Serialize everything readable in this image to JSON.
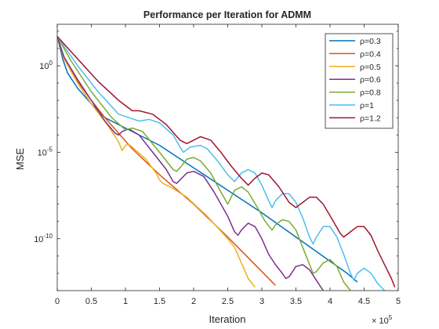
{
  "chart_data": {
    "type": "line",
    "title": "Performance per Iteration for ADMM",
    "xlabel": "Iteration",
    "ylabel": "MSE",
    "x_exponent_label": "× 10",
    "x_exponent": "5",
    "xlim": [
      0,
      5
    ],
    "ylim_log10": [
      -13,
      2.4
    ],
    "y_scale": "log",
    "x_ticks": [
      0,
      0.5,
      1,
      1.5,
      2,
      2.5,
      3,
      3.5,
      4,
      4.5,
      5
    ],
    "x_tick_labels": [
      "0",
      "0.5",
      "1",
      "1.5",
      "2",
      "2.5",
      "3",
      "3.5",
      "4",
      "4.5",
      "5"
    ],
    "y_ticks_log10": [
      0,
      -5,
      -10
    ],
    "y_tick_bases": [
      "10",
      "10",
      "10"
    ],
    "y_tick_exps": [
      "0",
      "-5",
      "-10"
    ],
    "grid": false,
    "legend_position": "top-right",
    "series": [
      {
        "name": "ρ=0.3",
        "color": "#0072bd",
        "points": [
          [
            0,
            1.7
          ],
          [
            0.08,
            0.4
          ],
          [
            0.15,
            -0.4
          ],
          [
            0.3,
            -1.3
          ],
          [
            0.5,
            -2.2
          ],
          [
            0.7,
            -3.0
          ],
          [
            1.0,
            -3.6
          ],
          [
            1.5,
            -4.6
          ],
          [
            2.0,
            -5.9
          ],
          [
            2.5,
            -7.2
          ],
          [
            3.0,
            -8.5
          ],
          [
            3.5,
            -9.9
          ],
          [
            4.0,
            -11.3
          ],
          [
            4.25,
            -12.0
          ],
          [
            4.4,
            -12.5
          ]
        ]
      },
      {
        "name": "ρ=0.4",
        "color": "#d95319",
        "points": [
          [
            0,
            1.7
          ],
          [
            0.1,
            0.5
          ],
          [
            0.3,
            -0.9
          ],
          [
            0.5,
            -2.0
          ],
          [
            0.7,
            -3.0
          ],
          [
            0.9,
            -3.9
          ],
          [
            1.1,
            -4.8
          ],
          [
            1.5,
            -6.3
          ],
          [
            2.0,
            -8.0
          ],
          [
            2.5,
            -9.9
          ],
          [
            2.7,
            -10.7
          ],
          [
            2.95,
            -11.7
          ],
          [
            3.2,
            -12.7
          ]
        ]
      },
      {
        "name": "ρ=0.5",
        "color": "#edb120",
        "points": [
          [
            0,
            1.7
          ],
          [
            0.1,
            0.4
          ],
          [
            0.3,
            -1.0
          ],
          [
            0.5,
            -2.2
          ],
          [
            0.75,
            -3.5
          ],
          [
            0.9,
            -4.4
          ],
          [
            0.95,
            -4.9
          ],
          [
            1.0,
            -4.6
          ],
          [
            1.05,
            -4.55
          ],
          [
            1.1,
            -4.7
          ],
          [
            1.3,
            -5.4
          ],
          [
            1.45,
            -6.2
          ],
          [
            1.5,
            -6.6
          ],
          [
            1.55,
            -6.8
          ],
          [
            1.7,
            -7.1
          ],
          [
            1.9,
            -7.6
          ],
          [
            2.2,
            -8.7
          ],
          [
            2.5,
            -10.0
          ],
          [
            2.6,
            -10.5
          ],
          [
            2.7,
            -11.4
          ],
          [
            2.8,
            -12.3
          ],
          [
            2.9,
            -12.8
          ]
        ]
      },
      {
        "name": "ρ=0.6",
        "color": "#7e2f8e",
        "points": [
          [
            0,
            1.7
          ],
          [
            0.1,
            0.5
          ],
          [
            0.3,
            -0.8
          ],
          [
            0.5,
            -2.0
          ],
          [
            0.7,
            -3.2
          ],
          [
            0.85,
            -3.9
          ],
          [
            0.9,
            -4.0
          ],
          [
            0.95,
            -3.8
          ],
          [
            1.05,
            -3.65
          ],
          [
            1.2,
            -4.0
          ],
          [
            1.4,
            -5.0
          ],
          [
            1.6,
            -6.0
          ],
          [
            1.7,
            -6.7
          ],
          [
            1.75,
            -6.8
          ],
          [
            1.8,
            -6.6
          ],
          [
            1.9,
            -6.2
          ],
          [
            2.0,
            -6.1
          ],
          [
            2.15,
            -6.4
          ],
          [
            2.3,
            -7.3
          ],
          [
            2.4,
            -8.0
          ],
          [
            2.5,
            -8.7
          ],
          [
            2.6,
            -9.6
          ],
          [
            2.65,
            -9.8
          ],
          [
            2.7,
            -9.5
          ],
          [
            2.8,
            -9.1
          ],
          [
            2.9,
            -9.3
          ],
          [
            3.0,
            -10.0
          ],
          [
            3.1,
            -10.9
          ],
          [
            3.2,
            -11.5
          ],
          [
            3.3,
            -12.0
          ],
          [
            3.35,
            -12.3
          ],
          [
            3.4,
            -12.2
          ],
          [
            3.5,
            -11.6
          ],
          [
            3.6,
            -11.5
          ],
          [
            3.7,
            -11.8
          ],
          [
            3.8,
            -12.4
          ],
          [
            3.9,
            -13.0
          ]
        ]
      },
      {
        "name": "ρ=0.8",
        "color": "#77ac30",
        "points": [
          [
            0,
            1.7
          ],
          [
            0.2,
            0.3
          ],
          [
            0.5,
            -1.5
          ],
          [
            0.8,
            -3.0
          ],
          [
            1.0,
            -3.7
          ],
          [
            1.1,
            -3.6
          ],
          [
            1.25,
            -3.8
          ],
          [
            1.5,
            -5.0
          ],
          [
            1.7,
            -6.0
          ],
          [
            1.75,
            -6.1
          ],
          [
            1.8,
            -5.9
          ],
          [
            1.9,
            -5.4
          ],
          [
            2.0,
            -5.3
          ],
          [
            2.1,
            -5.5
          ],
          [
            2.25,
            -6.2
          ],
          [
            2.4,
            -7.3
          ],
          [
            2.5,
            -8.0
          ],
          [
            2.55,
            -7.6
          ],
          [
            2.6,
            -7.2
          ],
          [
            2.7,
            -7.0
          ],
          [
            2.8,
            -7.3
          ],
          [
            2.95,
            -8.3
          ],
          [
            3.05,
            -9.0
          ],
          [
            3.15,
            -9.5
          ],
          [
            3.2,
            -9.2
          ],
          [
            3.3,
            -8.9
          ],
          [
            3.4,
            -9.0
          ],
          [
            3.5,
            -9.5
          ],
          [
            3.6,
            -10.5
          ],
          [
            3.7,
            -11.5
          ],
          [
            3.75,
            -12.0
          ],
          [
            3.8,
            -11.9
          ],
          [
            3.9,
            -11.4
          ],
          [
            4.0,
            -11.2
          ],
          [
            4.1,
            -11.6
          ],
          [
            4.2,
            -12.5
          ],
          [
            4.3,
            -13.0
          ]
        ]
      },
      {
        "name": "ρ=1",
        "color": "#4dbeee",
        "points": [
          [
            0,
            1.7
          ],
          [
            0.3,
            0.0
          ],
          [
            0.6,
            -1.5
          ],
          [
            0.9,
            -2.8
          ],
          [
            1.2,
            -3.2
          ],
          [
            1.35,
            -3.1
          ],
          [
            1.5,
            -3.3
          ],
          [
            1.7,
            -4.0
          ],
          [
            1.8,
            -4.7
          ],
          [
            1.85,
            -5.0
          ],
          [
            1.95,
            -4.7
          ],
          [
            2.1,
            -4.6
          ],
          [
            2.2,
            -4.8
          ],
          [
            2.35,
            -5.5
          ],
          [
            2.5,
            -6.3
          ],
          [
            2.6,
            -6.7
          ],
          [
            2.7,
            -6.2
          ],
          [
            2.8,
            -6.0
          ],
          [
            2.9,
            -6.2
          ],
          [
            3.0,
            -6.9
          ],
          [
            3.1,
            -7.8
          ],
          [
            3.15,
            -8.2
          ],
          [
            3.2,
            -7.8
          ],
          [
            3.3,
            -7.4
          ],
          [
            3.4,
            -7.4
          ],
          [
            3.5,
            -7.9
          ],
          [
            3.6,
            -8.8
          ],
          [
            3.7,
            -9.9
          ],
          [
            3.75,
            -10.3
          ],
          [
            3.8,
            -9.9
          ],
          [
            3.9,
            -9.3
          ],
          [
            4.0,
            -9.3
          ],
          [
            4.1,
            -9.9
          ],
          [
            4.2,
            -10.9
          ],
          [
            4.3,
            -12.0
          ],
          [
            4.35,
            -12.4
          ],
          [
            4.4,
            -12.0
          ],
          [
            4.5,
            -11.7
          ],
          [
            4.6,
            -12.0
          ],
          [
            4.7,
            -12.6
          ],
          [
            4.8,
            -13.0
          ]
        ]
      },
      {
        "name": "ρ=1.2",
        "color": "#a2142f",
        "points": [
          [
            0,
            1.7
          ],
          [
            0.3,
            0.4
          ],
          [
            0.6,
            -0.9
          ],
          [
            0.9,
            -2.0
          ],
          [
            1.1,
            -2.6
          ],
          [
            1.2,
            -2.6
          ],
          [
            1.4,
            -2.8
          ],
          [
            1.6,
            -3.4
          ],
          [
            1.8,
            -4.3
          ],
          [
            1.9,
            -4.5
          ],
          [
            2.0,
            -4.3
          ],
          [
            2.1,
            -4.1
          ],
          [
            2.25,
            -4.3
          ],
          [
            2.4,
            -5.0
          ],
          [
            2.55,
            -5.8
          ],
          [
            2.7,
            -6.5
          ],
          [
            2.8,
            -6.9
          ],
          [
            2.9,
            -6.5
          ],
          [
            3.0,
            -6.2
          ],
          [
            3.1,
            -6.3
          ],
          [
            3.25,
            -7.0
          ],
          [
            3.4,
            -7.9
          ],
          [
            3.5,
            -8.2
          ],
          [
            3.6,
            -7.9
          ],
          [
            3.7,
            -7.6
          ],
          [
            3.8,
            -7.6
          ],
          [
            3.9,
            -8.0
          ],
          [
            4.05,
            -9.0
          ],
          [
            4.15,
            -9.7
          ],
          [
            4.2,
            -9.9
          ],
          [
            4.3,
            -9.6
          ],
          [
            4.4,
            -9.3
          ],
          [
            4.5,
            -9.3
          ],
          [
            4.6,
            -9.8
          ],
          [
            4.7,
            -10.7
          ],
          [
            4.8,
            -11.5
          ],
          [
            4.9,
            -12.3
          ],
          [
            4.95,
            -12.8
          ]
        ]
      }
    ]
  }
}
